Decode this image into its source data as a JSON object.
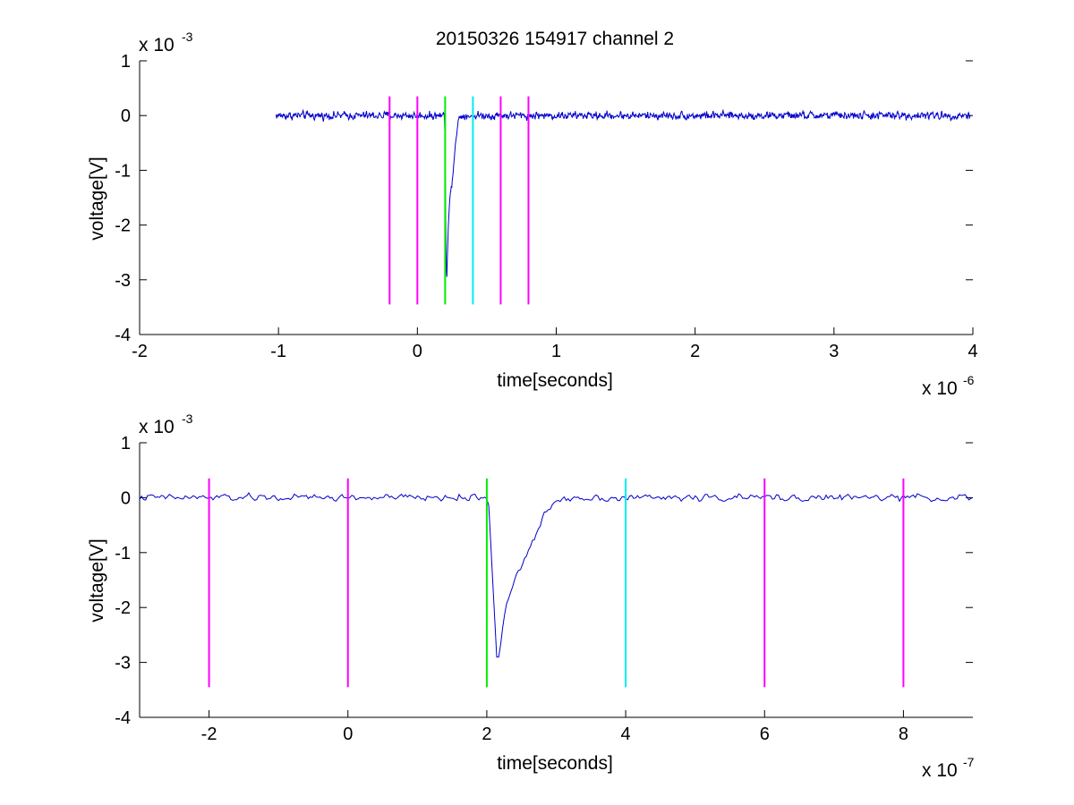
{
  "chart_data": [
    {
      "type": "line",
      "title": "20150326 154917 channel 2",
      "xlabel": "time[seconds]",
      "ylabel": "voltage[V]",
      "x_multiplier": "x 10",
      "x_exponent": "-6",
      "y_multiplier": "x 10",
      "y_exponent": "-3",
      "xlim": [
        -2,
        4
      ],
      "ylim": [
        -4,
        1
      ],
      "x_ticks": [
        "-2",
        "-1",
        "0",
        "1",
        "2",
        "3",
        "4"
      ],
      "y_ticks": [
        "-4",
        "-3",
        "-2",
        "-1",
        "0",
        "1"
      ],
      "grid": false,
      "signal": {
        "color": "#0000cc",
        "x_start": -1.02,
        "x_end": 3.98,
        "baseline": 0.0,
        "noise_amplitude": 0.09,
        "minimum": {
          "x": 0.21,
          "y": -3.1
        },
        "recovery_end_x": 0.32
      },
      "markers": [
        {
          "x": -0.2,
          "color": "#ff00ff",
          "y_from": -3.45,
          "y_to": 0.35
        },
        {
          "x": 0.0,
          "color": "#ff00ff",
          "y_from": -3.45,
          "y_to": 0.35
        },
        {
          "x": 0.2,
          "color": "#00ee00",
          "y_from": -3.45,
          "y_to": 0.35
        },
        {
          "x": 0.4,
          "color": "#00eeee",
          "y_from": -3.45,
          "y_to": 0.35
        },
        {
          "x": 0.6,
          "color": "#ff00ff",
          "y_from": -3.45,
          "y_to": 0.35
        },
        {
          "x": 0.8,
          "color": "#ff00ff",
          "y_from": -3.45,
          "y_to": 0.35
        }
      ]
    },
    {
      "type": "line",
      "title": "",
      "xlabel": "time[seconds]",
      "ylabel": "voltage[V]",
      "x_multiplier": "x 10",
      "x_exponent": "-7",
      "y_multiplier": "x 10",
      "y_exponent": "-3",
      "xlim": [
        -3,
        9
      ],
      "ylim": [
        -4,
        1
      ],
      "x_ticks": [
        "-2",
        "0",
        "2",
        "4",
        "6",
        "8"
      ],
      "y_ticks": [
        "-4",
        "-3",
        "-2",
        "-1",
        "0",
        "1"
      ],
      "grid": false,
      "signal": {
        "color": "#0000cc",
        "x_start": -3,
        "x_end": 9,
        "baseline": 0.0,
        "noise_amplitude": 0.08,
        "minimum": {
          "x": 2.15,
          "y": -3.1
        },
        "recovery_end_x": 3.2
      },
      "markers": [
        {
          "x": -2,
          "color": "#ff00ff",
          "y_from": -3.45,
          "y_to": 0.35
        },
        {
          "x": 0,
          "color": "#ff00ff",
          "y_from": -3.45,
          "y_to": 0.35
        },
        {
          "x": 2,
          "color": "#00ee00",
          "y_from": -3.45,
          "y_to": 0.35
        },
        {
          "x": 4,
          "color": "#00eeee",
          "y_from": -3.45,
          "y_to": 0.35
        },
        {
          "x": 6,
          "color": "#ff00ff",
          "y_from": -3.45,
          "y_to": 0.35
        },
        {
          "x": 8,
          "color": "#ff00ff",
          "y_from": -3.45,
          "y_to": 0.35
        }
      ]
    }
  ]
}
